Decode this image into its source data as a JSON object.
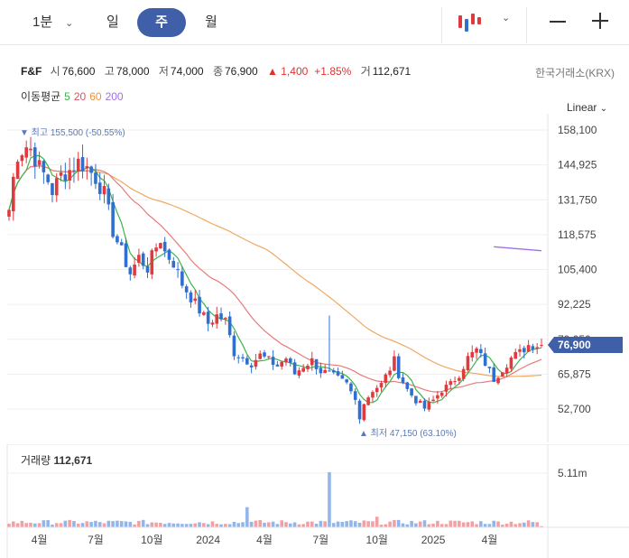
{
  "toolbar": {
    "interval": "1분",
    "day": "일",
    "week": "주",
    "month": "월",
    "chart_type_icon": "candlestick-icon",
    "zoom_out_icon": "minus-icon",
    "zoom_in_icon": "plus-icon"
  },
  "quote": {
    "name": "F&F",
    "open_label": "시",
    "open": "76,600",
    "high_label": "고",
    "high": "78,000",
    "low_label": "저",
    "low": "74,000",
    "close_label": "종",
    "close": "76,900",
    "change": "▲ 1,400",
    "change_pct": "+1.85%",
    "volume_label": "거",
    "volume": "112,671",
    "exchange": "한국거래소(KRX)"
  },
  "ma_legend": {
    "label": "이동평균",
    "periods": [
      "5",
      "20",
      "60",
      "200"
    ]
  },
  "scale": "Linear",
  "colors": {
    "up": "#e03a3e",
    "down": "#2f6fd0",
    "ma5": "#3cb44b",
    "ma20": "#e87a7a",
    "ma60": "#f0a860",
    "ma200": "#a070e0",
    "accent": "#3f5fa8",
    "current_price": "#3f5fa8"
  },
  "chart_data": {
    "type": "candlestick",
    "y_ticks": [
      "158,100",
      "144,925",
      "131,750",
      "118,575",
      "105,400",
      "92,225",
      "79,050",
      "65,875",
      "52,700"
    ],
    "ylim": [
      52700,
      158100
    ],
    "x_ticks": [
      "4월",
      "7월",
      "10월",
      "2024",
      "4월",
      "7월",
      "10월",
      "2025",
      "4월"
    ],
    "x_tick_week_index": [
      7,
      20,
      33,
      46,
      59,
      72,
      85,
      98,
      111
    ],
    "weeks": 124,
    "current_price": "76,900",
    "current_price_value": 76900,
    "max_annotation": "최고 155,500 (-50.55%)",
    "max_value": 155500,
    "max_week": 5,
    "min_annotation": "최저 47,150 (63.10%)",
    "min_value": 47150,
    "min_week": 81,
    "anchors": [
      [
        0,
        128000
      ],
      [
        1,
        140000
      ],
      [
        2,
        149000
      ],
      [
        4,
        152000
      ],
      [
        5,
        151000
      ],
      [
        7,
        144000
      ],
      [
        9,
        139000
      ],
      [
        10,
        135000
      ],
      [
        12,
        141000
      ],
      [
        14,
        143000
      ],
      [
        16,
        146000
      ],
      [
        18,
        144000
      ],
      [
        20,
        140000
      ],
      [
        22,
        134000
      ],
      [
        24,
        120000
      ],
      [
        26,
        112000
      ],
      [
        28,
        104000
      ],
      [
        30,
        110000
      ],
      [
        32,
        106000
      ],
      [
        34,
        114000
      ],
      [
        35,
        117000
      ],
      [
        36,
        112000
      ],
      [
        38,
        108000
      ],
      [
        40,
        100000
      ],
      [
        42,
        95000
      ],
      [
        44,
        90000
      ],
      [
        46,
        85000
      ],
      [
        48,
        88000
      ],
      [
        50,
        86000
      ],
      [
        52,
        74000
      ],
      [
        54,
        72000
      ],
      [
        56,
        70000
      ],
      [
        58,
        73000
      ],
      [
        60,
        71000
      ],
      [
        62,
        69000
      ],
      [
        64,
        72000
      ],
      [
        66,
        66000
      ],
      [
        68,
        69000
      ],
      [
        70,
        71000
      ],
      [
        72,
        67000
      ],
      [
        74,
        66000
      ],
      [
        76,
        64000
      ],
      [
        78,
        62000
      ],
      [
        80,
        56000
      ],
      [
        81,
        50000
      ],
      [
        82,
        55000
      ],
      [
        84,
        60000
      ],
      [
        86,
        62000
      ],
      [
        88,
        68000
      ],
      [
        89,
        71000
      ],
      [
        90,
        66000
      ],
      [
        92,
        60000
      ],
      [
        94,
        56000
      ],
      [
        96,
        53000
      ],
      [
        98,
        56000
      ],
      [
        100,
        60000
      ],
      [
        102,
        62000
      ],
      [
        104,
        66000
      ],
      [
        106,
        72000
      ],
      [
        108,
        75000
      ],
      [
        110,
        70000
      ],
      [
        112,
        64000
      ],
      [
        114,
        68000
      ],
      [
        116,
        72000
      ],
      [
        118,
        74000
      ],
      [
        120,
        76900
      ]
    ],
    "ma200_segment": {
      "from_week": 112,
      "to_week": 123,
      "values": [
        114000,
        112500
      ]
    },
    "volume": {
      "label": "거래량",
      "latest": "112,671",
      "y_tick": "5.11m",
      "y_tick_value": 5110000,
      "spike_week": 74,
      "spike_value": 5200000
    }
  }
}
